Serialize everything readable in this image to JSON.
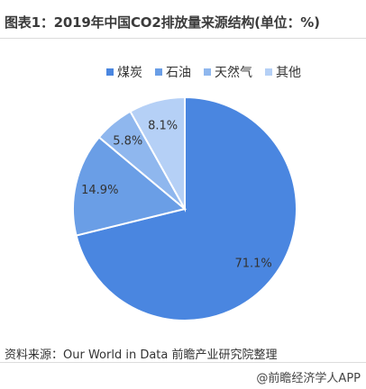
{
  "title": "图表1：2019年中国CO2排放量来源结构(单位：%)",
  "source": "资料来源：Our World in Data 前瞻产业研究院整理",
  "brand": "@前瞻经济学人APP",
  "chart_data": {
    "type": "pie",
    "categories": [
      "煤炭",
      "石油",
      "天然气",
      "其他"
    ],
    "values": [
      71.1,
      14.9,
      5.8,
      8.1
    ],
    "labels": [
      "71.1%",
      "14.9%",
      "5.8%",
      "8.1%"
    ],
    "colors": [
      "#4a86e0",
      "#6a9ee6",
      "#8fb7ee",
      "#b5d0f6"
    ],
    "legend_position": "top"
  }
}
